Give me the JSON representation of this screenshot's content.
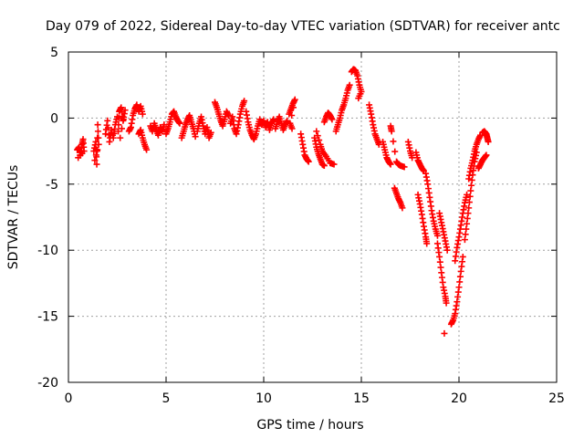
{
  "chart_data": {
    "type": "scatter",
    "title": "Day 079 of 2022, Sidereal Day-to-day VTEC variation (SDTVAR) for receiver antc",
    "xlabel": "GPS time / hours",
    "ylabel": "SDTVAR / TECUs",
    "xlim": [
      0,
      25
    ],
    "ylim": [
      -20,
      5
    ],
    "x_ticks": [
      0,
      5,
      10,
      15,
      20,
      25
    ],
    "y_ticks": [
      5,
      0,
      -5,
      -10,
      -15,
      -20
    ],
    "grid": true,
    "marker": "+",
    "colors": {
      "series": "#ff0000",
      "grid": "#a0a0a0",
      "axis": "#000000"
    },
    "series": [
      {
        "name": "SDTVAR",
        "segments": [
          [
            [
              0.45,
              -2.4
            ],
            [
              0.55,
              -2.2
            ],
            [
              0.6,
              -2.8
            ],
            [
              0.7,
              -2.0
            ],
            [
              0.75,
              -1.6
            ],
            [
              0.8,
              -2.5
            ],
            [
              0.5,
              -3.0
            ]
          ],
          [
            [
              1.3,
              -2.5
            ],
            [
              1.4,
              -1.8
            ],
            [
              1.45,
              -3.5
            ],
            [
              1.5,
              -0.5
            ],
            [
              1.55,
              -2.0
            ],
            [
              1.35,
              -3.2
            ]
          ],
          [
            [
              1.9,
              -1.2
            ],
            [
              2.0,
              -0.2
            ],
            [
              2.1,
              -1.8
            ],
            [
              2.2,
              -0.9
            ],
            [
              2.3,
              -1.5
            ],
            [
              2.4,
              -0.5
            ],
            [
              2.5,
              0.1
            ]
          ],
          [
            [
              2.55,
              -1.0
            ],
            [
              2.6,
              0.5
            ],
            [
              2.7,
              0.8
            ],
            [
              2.8,
              -0.2
            ],
            [
              2.9,
              0.6
            ],
            [
              2.65,
              -1.5
            ]
          ],
          [
            [
              3.1,
              -1.0
            ],
            [
              3.2,
              -0.7
            ],
            [
              3.3,
              0.2
            ],
            [
              3.4,
              0.7
            ],
            [
              3.5,
              1.0
            ],
            [
              3.6,
              0.5
            ],
            [
              3.7,
              0.9
            ],
            [
              3.8,
              0.3
            ]
          ],
          [
            [
              3.6,
              -1.2
            ],
            [
              3.7,
              -0.9
            ],
            [
              3.8,
              -1.5
            ],
            [
              3.9,
              -2.0
            ],
            [
              4.0,
              -2.4
            ]
          ],
          [
            [
              4.2,
              -0.6
            ],
            [
              4.3,
              -1.0
            ],
            [
              4.4,
              -0.4
            ],
            [
              4.5,
              -0.9
            ],
            [
              4.6,
              -1.3
            ],
            [
              4.7,
              -0.7
            ],
            [
              4.8,
              -1.0
            ],
            [
              4.9,
              -0.5
            ]
          ],
          [
            [
              5.0,
              -1.2
            ],
            [
              5.1,
              -0.8
            ],
            [
              5.2,
              -0.3
            ],
            [
              5.3,
              0.3
            ],
            [
              5.4,
              0.5
            ],
            [
              5.5,
              0.1
            ],
            [
              5.6,
              -0.2
            ],
            [
              5.7,
              -0.4
            ]
          ],
          [
            [
              5.8,
              -1.5
            ],
            [
              5.9,
              -1.0
            ],
            [
              6.0,
              -0.5
            ],
            [
              6.1,
              -0.1
            ],
            [
              6.2,
              0.2
            ],
            [
              6.3,
              -0.3
            ],
            [
              6.4,
              -0.8
            ],
            [
              6.5,
              -1.4
            ]
          ],
          [
            [
              6.6,
              -1.0
            ],
            [
              6.7,
              -0.4
            ],
            [
              6.8,
              0.1
            ],
            [
              6.9,
              -0.6
            ],
            [
              7.0,
              -1.2
            ],
            [
              7.1,
              -0.7
            ],
            [
              7.2,
              -1.5
            ],
            [
              7.3,
              -1.1
            ]
          ],
          [
            [
              7.5,
              1.2
            ],
            [
              7.6,
              0.8
            ],
            [
              7.7,
              0.3
            ],
            [
              7.8,
              -0.2
            ],
            [
              7.9,
              -0.6
            ],
            [
              8.0,
              -0.1
            ],
            [
              8.1,
              0.5
            ],
            [
              8.2,
              0.2
            ]
          ],
          [
            [
              8.3,
              -0.4
            ],
            [
              8.4,
              0.1
            ],
            [
              8.5,
              -0.8
            ],
            [
              8.6,
              -1.2
            ],
            [
              8.7,
              -0.5
            ],
            [
              8.8,
              0.3
            ],
            [
              8.9,
              0.9
            ],
            [
              9.0,
              1.3
            ]
          ],
          [
            [
              9.1,
              0.5
            ],
            [
              9.2,
              -0.3
            ],
            [
              9.3,
              -0.9
            ],
            [
              9.4,
              -1.3
            ],
            [
              9.5,
              -1.6
            ],
            [
              9.6,
              -1.2
            ],
            [
              9.7,
              -0.6
            ],
            [
              9.8,
              -0.1
            ]
          ],
          [
            [
              9.9,
              -0.5
            ],
            [
              10.0,
              -0.2
            ],
            [
              10.1,
              -0.7
            ],
            [
              10.2,
              -0.3
            ],
            [
              10.3,
              -0.9
            ],
            [
              10.4,
              -0.4
            ],
            [
              10.5,
              -0.1
            ]
          ],
          [
            [
              10.6,
              -0.8
            ],
            [
              10.7,
              -0.3
            ],
            [
              10.8,
              0.1
            ],
            [
              10.9,
              -0.4
            ],
            [
              11.0,
              -0.9
            ],
            [
              11.1,
              -0.5
            ],
            [
              11.2,
              -0.2
            ]
          ],
          [
            [
              11.3,
              0.3
            ],
            [
              11.4,
              0.7
            ],
            [
              11.5,
              1.1
            ],
            [
              11.6,
              1.4
            ],
            [
              11.35,
              -0.4
            ],
            [
              11.45,
              -0.8
            ]
          ],
          [
            [
              11.9,
              -1.2
            ],
            [
              12.0,
              -2.0
            ],
            [
              12.1,
              -2.8
            ],
            [
              12.2,
              -3.1
            ],
            [
              12.3,
              -3.3
            ]
          ],
          [
            [
              12.6,
              -1.5
            ],
            [
              12.7,
              -2.2
            ],
            [
              12.8,
              -2.7
            ],
            [
              12.9,
              -3.1
            ],
            [
              13.0,
              -3.5
            ],
            [
              13.1,
              -3.6
            ]
          ],
          [
            [
              12.7,
              -1.0
            ],
            [
              12.9,
              -2.0
            ],
            [
              13.0,
              -2.5
            ],
            [
              13.2,
              -2.9
            ],
            [
              13.4,
              -3.4
            ],
            [
              13.6,
              -3.5
            ]
          ],
          [
            [
              13.1,
              -0.3
            ],
            [
              13.2,
              0.1
            ],
            [
              13.3,
              0.4
            ],
            [
              13.4,
              0.2
            ],
            [
              13.5,
              -0.1
            ]
          ],
          [
            [
              13.7,
              -1.0
            ],
            [
              13.8,
              -0.5
            ],
            [
              13.9,
              0.0
            ],
            [
              14.0,
              0.6
            ],
            [
              14.1,
              1.0
            ],
            [
              14.2,
              1.5
            ],
            [
              14.3,
              2.1
            ],
            [
              14.4,
              2.5
            ]
          ],
          [
            [
              14.5,
              3.5
            ],
            [
              14.6,
              3.7
            ],
            [
              14.7,
              3.6
            ],
            [
              14.8,
              3.2
            ],
            [
              14.9,
              2.5
            ],
            [
              15.0,
              2.0
            ],
            [
              14.85,
              1.5
            ]
          ],
          [
            [
              15.4,
              1.0
            ],
            [
              15.5,
              0.3
            ],
            [
              15.6,
              -0.5
            ],
            [
              15.7,
              -1.2
            ],
            [
              15.8,
              -1.6
            ],
            [
              15.9,
              -2.0
            ]
          ],
          [
            [
              16.1,
              -1.8
            ],
            [
              16.2,
              -2.4
            ],
            [
              16.3,
              -3.0
            ],
            [
              16.4,
              -3.3
            ],
            [
              16.5,
              -3.5
            ]
          ],
          [
            [
              16.5,
              -0.6
            ],
            [
              16.55,
              -1.0
            ],
            [
              16.8,
              -3.3
            ],
            [
              16.9,
              -3.5
            ],
            [
              17.0,
              -3.6
            ],
            [
              17.2,
              -3.7
            ]
          ],
          [
            [
              16.7,
              -5.3
            ],
            [
              16.8,
              -5.7
            ],
            [
              16.9,
              -6.1
            ],
            [
              17.0,
              -6.4
            ],
            [
              17.1,
              -6.8
            ]
          ],
          [
            [
              17.4,
              -1.8
            ],
            [
              17.5,
              -2.5
            ],
            [
              17.6,
              -3.0
            ]
          ],
          [
            [
              17.8,
              -2.6
            ],
            [
              17.9,
              -3.2
            ],
            [
              18.0,
              -3.5
            ],
            [
              18.1,
              -3.8
            ],
            [
              18.2,
              -4.0
            ]
          ],
          [
            [
              17.9,
              -5.8
            ],
            [
              18.0,
              -6.5
            ],
            [
              18.1,
              -7.3
            ],
            [
              18.2,
              -8.2
            ],
            [
              18.3,
              -9.0
            ],
            [
              18.35,
              -9.5
            ]
          ],
          [
            [
              18.3,
              -4.2
            ],
            [
              18.4,
              -5.0
            ],
            [
              18.5,
              -6.0
            ],
            [
              18.6,
              -7.0
            ],
            [
              18.7,
              -7.8
            ],
            [
              18.8,
              -8.4
            ],
            [
              18.9,
              -8.9
            ]
          ],
          [
            [
              18.9,
              -9.5
            ],
            [
              19.0,
              -10.5
            ],
            [
              19.1,
              -11.7
            ],
            [
              19.2,
              -12.8
            ],
            [
              19.3,
              -13.5
            ],
            [
              19.35,
              -14.0
            ]
          ],
          [
            [
              19.0,
              -7.2
            ],
            [
              19.1,
              -7.9
            ],
            [
              19.2,
              -8.6
            ],
            [
              19.3,
              -9.3
            ],
            [
              19.4,
              -10.0
            ]
          ],
          [
            [
              19.25,
              -16.3
            ]
          ],
          [
            [
              19.6,
              -15.6
            ],
            [
              19.7,
              -15.3
            ],
            [
              19.8,
              -14.8
            ],
            [
              19.9,
              -13.9
            ],
            [
              20.0,
              -12.8
            ],
            [
              20.1,
              -11.6
            ],
            [
              20.2,
              -10.5
            ]
          ],
          [
            [
              19.8,
              -10.8
            ],
            [
              19.9,
              -9.8
            ],
            [
              20.0,
              -9.0
            ],
            [
              20.1,
              -8.1
            ],
            [
              20.2,
              -7.2
            ],
            [
              20.3,
              -6.4
            ],
            [
              20.4,
              -5.8
            ]
          ],
          [
            [
              20.3,
              -9.2
            ],
            [
              20.4,
              -8.0
            ],
            [
              20.5,
              -6.8
            ],
            [
              20.6,
              -5.5
            ],
            [
              20.7,
              -4.3
            ],
            [
              20.8,
              -3.3
            ],
            [
              20.9,
              -2.6
            ]
          ],
          [
            [
              20.5,
              -4.6
            ],
            [
              20.6,
              -3.8
            ],
            [
              20.7,
              -3.2
            ],
            [
              20.8,
              -2.5
            ],
            [
              20.9,
              -2.0
            ],
            [
              21.0,
              -1.6
            ],
            [
              21.1,
              -1.3
            ]
          ],
          [
            [
              21.0,
              -3.8
            ],
            [
              21.1,
              -3.5
            ],
            [
              21.2,
              -3.2
            ],
            [
              21.3,
              -3.0
            ],
            [
              21.4,
              -2.8
            ]
          ],
          [
            [
              21.2,
              -1.1
            ],
            [
              21.3,
              -1.0
            ],
            [
              21.4,
              -1.2
            ],
            [
              21.45,
              -1.5
            ],
            [
              21.5,
              -1.8
            ]
          ]
        ]
      }
    ]
  }
}
